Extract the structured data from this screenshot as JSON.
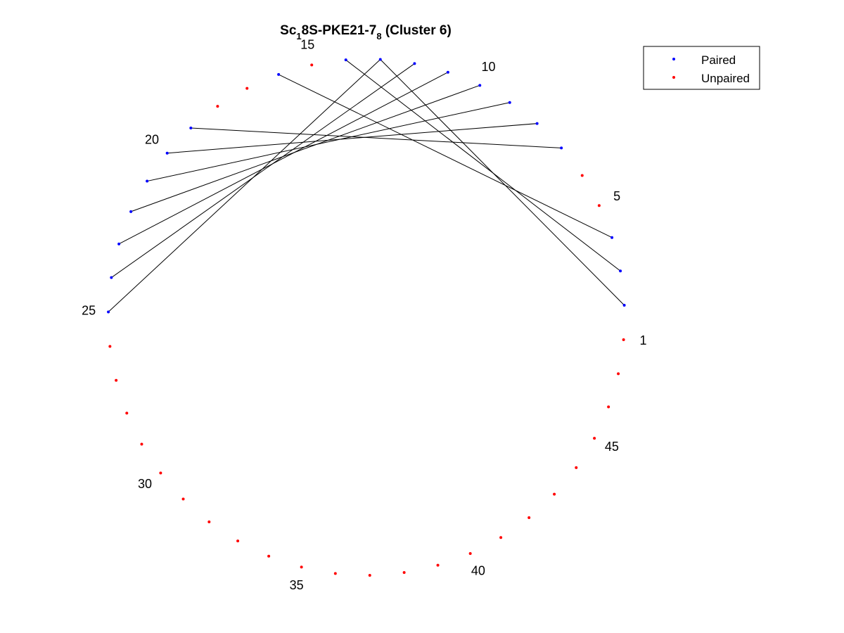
{
  "title": {
    "prefix": "Sc",
    "sub1": "1",
    "middle": "8S-PKE21-7",
    "sub2": "8",
    "suffix": " (Cluster 6)"
  },
  "legend": {
    "placement": "top-right",
    "entries": [
      {
        "label": "Paired",
        "color": "#0000ff"
      },
      {
        "label": "Unpaired",
        "color": "#ff0000"
      }
    ]
  },
  "chart_data": {
    "type": "scatter",
    "layout": "circular",
    "n_nucleotides": 47,
    "start_angle_deg": -5,
    "direction": "counterclockwise",
    "numbered_positions": [
      1,
      5,
      10,
      15,
      20,
      25,
      30,
      35,
      40,
      45
    ],
    "position_labels": [
      "1",
      "5",
      "10",
      "15",
      "20",
      "25",
      "30",
      "35",
      "40",
      "45"
    ],
    "pairs": [
      [
        2,
        13
      ],
      [
        3,
        14
      ],
      [
        4,
        16
      ],
      [
        7,
        19
      ],
      [
        8,
        20
      ],
      [
        9,
        21
      ],
      [
        10,
        22
      ],
      [
        11,
        23
      ],
      [
        12,
        24
      ],
      [
        13,
        25
      ]
    ],
    "unpaired": [
      1,
      5,
      6,
      7,
      8,
      9,
      10,
      11,
      12,
      17,
      18,
      26,
      27,
      28,
      29,
      30,
      31,
      32,
      33,
      34,
      35,
      36,
      37,
      38,
      39,
      40,
      43
    ],
    "series": [
      {
        "name": "Paired",
        "color": "#0000ff"
      },
      {
        "name": "Unpaired",
        "color": "#ff0000"
      }
    ],
    "pair_line_color": "#000000"
  }
}
